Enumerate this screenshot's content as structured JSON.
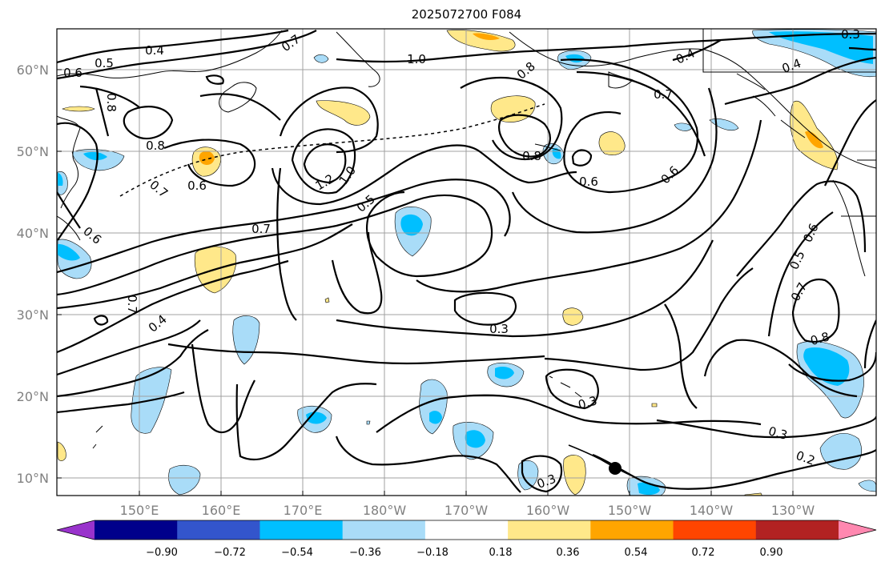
{
  "title": "2025072700 F084",
  "latitude_labels": [
    "60°N",
    "50°N",
    "40°N",
    "30°N",
    "20°N",
    "10°N"
  ],
  "longitude_labels": [
    "150°E",
    "160°E",
    "170°E",
    "180°W",
    "170°W",
    "160°W",
    "150°W",
    "140°W",
    "130°W"
  ],
  "colorbar": {
    "ticks": [
      "−0.90",
      "−0.72",
      "−0.54",
      "−0.36",
      "−0.18",
      "0.18",
      "0.36",
      "0.54",
      "0.72",
      "0.90"
    ],
    "colors": [
      "#9933cc",
      "#00008b",
      "#3355cc",
      "#00bfff",
      "#a9dcf8",
      "#ffffff",
      "#ffe88a",
      "#ffa500",
      "#ff4500",
      "#b22222",
      "#ff88b0"
    ]
  },
  "contour_labels": [
    "0.4",
    "0.5",
    "0.6",
    "0.8",
    "0.7",
    "1.0",
    "0.8",
    "0.4",
    "0.3",
    "0.4",
    "0.7",
    "0.8",
    "0.6",
    "0.6",
    "0.8",
    "0.6",
    "1.2",
    "1.0",
    "0.5",
    "0.7",
    "0.7",
    "0.6",
    "0.7",
    "0.4",
    "0.3",
    "0.5",
    "0.6",
    "0.7",
    "0.8",
    "0.3",
    "0.3",
    "0.2",
    "0.3"
  ],
  "colors": {
    "contour": "#000000",
    "grid": "#a0a0a0",
    "axis_label": "#808080"
  }
}
